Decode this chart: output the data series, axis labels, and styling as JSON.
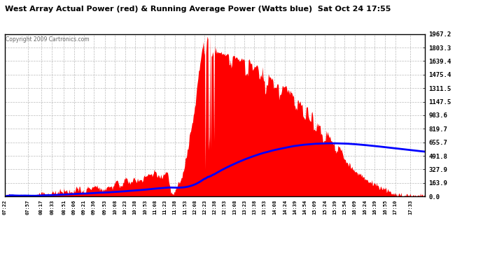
{
  "title": "West Array Actual Power (red) & Running Average Power (Watts blue)  Sat Oct 24 17:55",
  "copyright": "Copyright 2009 Cartronics.com",
  "bg_color": "#ffffff",
  "plot_bg_color": "#ffffff",
  "grid_color": "#aaaaaa",
  "text_color": "#000000",
  "red_color": "#ff0000",
  "blue_color": "#0000ff",
  "ymax": 1967.2,
  "ymin": 0.0,
  "yticks": [
    0.0,
    163.9,
    327.9,
    491.8,
    655.7,
    819.7,
    983.6,
    1147.5,
    1311.5,
    1475.4,
    1639.4,
    1803.3,
    1967.2
  ],
  "xtick_labels": [
    "07:22",
    "07:57",
    "08:17",
    "08:33",
    "08:51",
    "09:06",
    "09:21",
    "09:36",
    "09:53",
    "10:08",
    "10:23",
    "10:38",
    "10:53",
    "11:08",
    "11:23",
    "11:38",
    "11:53",
    "12:08",
    "12:23",
    "12:38",
    "12:53",
    "13:08",
    "13:23",
    "13:38",
    "13:53",
    "14:08",
    "14:24",
    "14:39",
    "14:54",
    "15:09",
    "15:24",
    "15:39",
    "15:54",
    "16:09",
    "16:24",
    "16:39",
    "16:55",
    "17:10",
    "17:33"
  ],
  "figsize": [
    6.9,
    3.75
  ],
  "dpi": 100
}
